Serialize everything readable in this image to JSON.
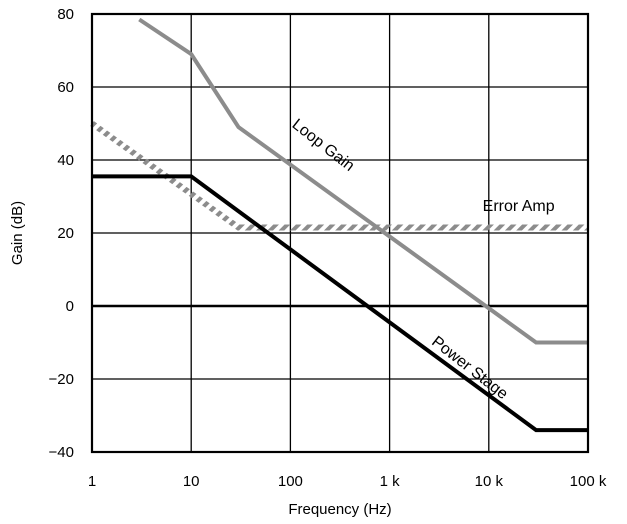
{
  "chart_data": {
    "type": "line",
    "title": "",
    "xlabel": "Frequency  (Hz)",
    "ylabel": "Gain (dB)",
    "xscale": "log",
    "xlim": [
      1,
      100000
    ],
    "ylim": [
      -40,
      80
    ],
    "grid": true,
    "x_ticks": [
      {
        "value": 1,
        "label": "1"
      },
      {
        "value": 10,
        "label": "10"
      },
      {
        "value": 100,
        "label": "100"
      },
      {
        "value": 1000,
        "label": "1 k"
      },
      {
        "value": 10000,
        "label": "10 k"
      },
      {
        "value": 100000,
        "label": "100 k"
      }
    ],
    "y_ticks": [
      {
        "value": 80,
        "label": "80"
      },
      {
        "value": 60,
        "label": "60"
      },
      {
        "value": 40,
        "label": "40"
      },
      {
        "value": 20,
        "label": "20"
      },
      {
        "value": 0,
        "label": "0"
      },
      {
        "value": -20,
        "label": "−20"
      },
      {
        "value": -40,
        "label": "−40"
      }
    ],
    "series": [
      {
        "name": "Loop Gain",
        "color": "#8c8c8c",
        "style": "solid",
        "points": [
          [
            3,
            78.5
          ],
          [
            10,
            69
          ],
          [
            30,
            49
          ],
          [
            30000,
            -10
          ],
          [
            100000,
            -10
          ]
        ]
      },
      {
        "name": "Error Amp",
        "color": "#8c8c8c",
        "style": "hatched",
        "points": [
          [
            1,
            50
          ],
          [
            30,
            21.5
          ],
          [
            100000,
            21.5
          ]
        ]
      },
      {
        "name": "Power Stage",
        "color": "#000000",
        "style": "solid",
        "points": [
          [
            1,
            35.5
          ],
          [
            10,
            35.5
          ],
          [
            30000,
            -34
          ],
          [
            100000,
            -34
          ]
        ]
      }
    ],
    "annotations": [
      {
        "text": "Loop Gain",
        "series": "Loop Gain",
        "x": 200,
        "y": 43,
        "rotate": 38
      },
      {
        "text": "Error Amp",
        "series": "Error Amp",
        "x": 20000,
        "y": 26,
        "rotate": 0
      },
      {
        "text": "Power Stage",
        "series": "Power Stage",
        "x": 6000,
        "y": -18,
        "rotate": 38
      }
    ]
  }
}
